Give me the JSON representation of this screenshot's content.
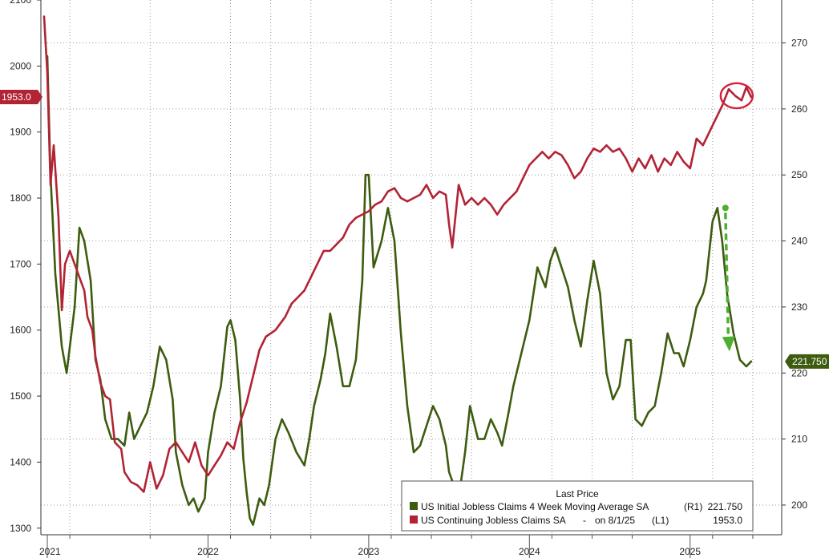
{
  "chart_data": {
    "type": "line",
    "grid": true,
    "legend_placement": "bottom-right",
    "legend_title": "Last Price",
    "left_axis": {
      "range": [
        1290,
        2100
      ],
      "ticks": [
        {
          "value": 1300,
          "label": "1300"
        },
        {
          "value": 1400,
          "label": "1400"
        },
        {
          "value": 1500,
          "label": "1500"
        },
        {
          "value": 1600,
          "label": "1600"
        },
        {
          "value": 1700,
          "label": "1700"
        },
        {
          "value": 1800,
          "label": "1800"
        },
        {
          "value": 1900,
          "label": "1900"
        },
        {
          "value": 2000,
          "label": "2000"
        },
        {
          "value": 2100,
          "label": "2100"
        }
      ]
    },
    "right_axis": {
      "range": [
        195.5,
        276.5
      ],
      "ticks": [
        {
          "value": 200,
          "label": "200"
        },
        {
          "value": 210,
          "label": "210"
        },
        {
          "value": 220,
          "label": "220"
        },
        {
          "value": 230,
          "label": "230"
        },
        {
          "value": 240,
          "label": "240"
        },
        {
          "value": 250,
          "label": "250"
        },
        {
          "value": 260,
          "label": "260"
        },
        {
          "value": 270,
          "label": "270"
        }
      ]
    },
    "x_axis": {
      "range": [
        2020.96,
        2025.57
      ],
      "year_labels": [
        {
          "value": 2021.05,
          "label": "2021"
        },
        {
          "value": 2022.0,
          "label": "2022"
        },
        {
          "value": 2023.0,
          "label": "2023"
        },
        {
          "value": 2024.0,
          "label": "2024"
        },
        {
          "value": 2025.0,
          "label": "2025"
        }
      ],
      "year_boundaries": [
        2021.0,
        2022.0,
        2023.0,
        2024.0,
        2025.0
      ],
      "gridlines": [
        2021.14,
        2021.64,
        2022.14,
        2022.39,
        2022.64,
        2023.14,
        2023.39,
        2023.64,
        2024.14,
        2024.39,
        2024.64,
        2025.14,
        2025.39
      ]
    },
    "series": [
      {
        "name": "US Initial Jobless Claims 4 Week Moving Average SA",
        "axis": "R1",
        "legend_axis_label": "(R1)",
        "last_value_label": "221.750",
        "last_value": 221.75,
        "color": "#3d5c0f",
        "points": [
          [
            2021.0,
            268
          ],
          [
            2021.02,
            250
          ],
          [
            2021.05,
            235
          ],
          [
            2021.09,
            224
          ],
          [
            2021.12,
            220
          ],
          [
            2021.17,
            230
          ],
          [
            2021.2,
            242
          ],
          [
            2021.23,
            240
          ],
          [
            2021.27,
            234
          ],
          [
            2021.3,
            222
          ],
          [
            2021.33,
            219
          ],
          [
            2021.36,
            213
          ],
          [
            2021.4,
            210
          ],
          [
            2021.44,
            210
          ],
          [
            2021.48,
            209
          ],
          [
            2021.51,
            214
          ],
          [
            2021.54,
            210
          ],
          [
            2021.58,
            212
          ],
          [
            2021.62,
            214
          ],
          [
            2021.66,
            218
          ],
          [
            2021.7,
            224
          ],
          [
            2021.74,
            222
          ],
          [
            2021.78,
            216
          ],
          [
            2021.8,
            208
          ],
          [
            2021.84,
            203
          ],
          [
            2021.88,
            200
          ],
          [
            2021.91,
            201
          ],
          [
            2021.94,
            199
          ],
          [
            2021.98,
            201
          ],
          [
            2022.0,
            208
          ],
          [
            2022.04,
            214
          ],
          [
            2022.08,
            218
          ],
          [
            2022.12,
            227
          ],
          [
            2022.14,
            228
          ],
          [
            2022.17,
            225
          ],
          [
            2022.2,
            216
          ],
          [
            2022.22,
            207
          ],
          [
            2022.24,
            202
          ],
          [
            2022.26,
            198
          ],
          [
            2022.28,
            197
          ],
          [
            2022.3,
            199
          ],
          [
            2022.32,
            201
          ],
          [
            2022.35,
            200
          ],
          [
            2022.38,
            203
          ],
          [
            2022.42,
            210
          ],
          [
            2022.46,
            213
          ],
          [
            2022.5,
            211
          ],
          [
            2022.55,
            208
          ],
          [
            2022.6,
            206
          ],
          [
            2022.63,
            210
          ],
          [
            2022.66,
            215
          ],
          [
            2022.7,
            219
          ],
          [
            2022.73,
            223
          ],
          [
            2022.76,
            229
          ],
          [
            2022.8,
            224
          ],
          [
            2022.84,
            218
          ],
          [
            2022.88,
            218
          ],
          [
            2022.92,
            222
          ],
          [
            2022.96,
            234
          ],
          [
            2022.98,
            250
          ],
          [
            2023.0,
            250
          ],
          [
            2023.03,
            236
          ],
          [
            2023.08,
            240
          ],
          [
            2023.12,
            245
          ],
          [
            2023.16,
            240
          ],
          [
            2023.2,
            226
          ],
          [
            2023.24,
            215
          ],
          [
            2023.28,
            208
          ],
          [
            2023.32,
            209
          ],
          [
            2023.36,
            212
          ],
          [
            2023.4,
            215
          ],
          [
            2023.44,
            213
          ],
          [
            2023.48,
            209
          ],
          [
            2023.5,
            205
          ],
          [
            2023.53,
            203
          ],
          [
            2023.56,
            201
          ],
          [
            2023.6,
            208
          ],
          [
            2023.63,
            215
          ],
          [
            2023.66,
            212
          ],
          [
            2023.68,
            210
          ],
          [
            2023.72,
            210
          ],
          [
            2023.76,
            213
          ],
          [
            2023.8,
            211
          ],
          [
            2023.83,
            209
          ],
          [
            2023.87,
            214
          ],
          [
            2023.9,
            218
          ],
          [
            2023.94,
            222
          ],
          [
            2024.0,
            228
          ],
          [
            2024.05,
            236
          ],
          [
            2024.1,
            233
          ],
          [
            2024.13,
            237
          ],
          [
            2024.16,
            239
          ],
          [
            2024.2,
            236
          ],
          [
            2024.24,
            233
          ],
          [
            2024.28,
            228
          ],
          [
            2024.32,
            224
          ],
          [
            2024.36,
            231
          ],
          [
            2024.4,
            237
          ],
          [
            2024.44,
            232
          ],
          [
            2024.48,
            220
          ],
          [
            2024.52,
            216
          ],
          [
            2024.56,
            218
          ],
          [
            2024.6,
            225
          ],
          [
            2024.63,
            225
          ],
          [
            2024.66,
            213
          ],
          [
            2024.7,
            212
          ],
          [
            2024.74,
            214
          ],
          [
            2024.78,
            215
          ],
          [
            2024.82,
            220
          ],
          [
            2024.86,
            226
          ],
          [
            2024.9,
            223
          ],
          [
            2024.93,
            223
          ],
          [
            2024.96,
            221
          ],
          [
            2025.0,
            225
          ],
          [
            2025.04,
            230
          ],
          [
            2025.08,
            232
          ],
          [
            2025.1,
            234
          ],
          [
            2025.14,
            243
          ],
          [
            2025.17,
            245
          ],
          [
            2025.2,
            240
          ],
          [
            2025.23,
            232
          ],
          [
            2025.27,
            226
          ],
          [
            2025.31,
            222
          ],
          [
            2025.35,
            221
          ],
          [
            2025.38,
            221.75
          ]
        ]
      },
      {
        "name": "US Continuing Jobless Claims SA",
        "axis": "L1",
        "legend_axis_label": "(L1)",
        "legend_date": "on 8/1/25",
        "last_value_label": "1953.0",
        "last_value": 1953.0,
        "color": "#b22335",
        "points": [
          [
            2020.98,
            2075
          ],
          [
            2021.0,
            1990
          ],
          [
            2021.02,
            1820
          ],
          [
            2021.04,
            1880
          ],
          [
            2021.07,
            1770
          ],
          [
            2021.09,
            1630
          ],
          [
            2021.11,
            1700
          ],
          [
            2021.14,
            1720
          ],
          [
            2021.17,
            1700
          ],
          [
            2021.2,
            1680
          ],
          [
            2021.23,
            1660
          ],
          [
            2021.25,
            1620
          ],
          [
            2021.28,
            1600
          ],
          [
            2021.3,
            1560
          ],
          [
            2021.33,
            1520
          ],
          [
            2021.36,
            1500
          ],
          [
            2021.39,
            1495
          ],
          [
            2021.42,
            1430
          ],
          [
            2021.46,
            1420
          ],
          [
            2021.48,
            1385
          ],
          [
            2021.52,
            1370
          ],
          [
            2021.56,
            1365
          ],
          [
            2021.6,
            1355
          ],
          [
            2021.64,
            1400
          ],
          [
            2021.68,
            1360
          ],
          [
            2021.72,
            1380
          ],
          [
            2021.76,
            1420
          ],
          [
            2021.8,
            1430
          ],
          [
            2021.84,
            1415
          ],
          [
            2021.88,
            1400
          ],
          [
            2021.92,
            1430
          ],
          [
            2021.96,
            1395
          ],
          [
            2022.0,
            1380
          ],
          [
            2022.04,
            1395
          ],
          [
            2022.08,
            1410
          ],
          [
            2022.12,
            1430
          ],
          [
            2022.16,
            1420
          ],
          [
            2022.2,
            1460
          ],
          [
            2022.24,
            1490
          ],
          [
            2022.28,
            1530
          ],
          [
            2022.32,
            1570
          ],
          [
            2022.36,
            1590
          ],
          [
            2022.42,
            1600
          ],
          [
            2022.48,
            1620
          ],
          [
            2022.52,
            1640
          ],
          [
            2022.56,
            1650
          ],
          [
            2022.6,
            1660
          ],
          [
            2022.64,
            1680
          ],
          [
            2022.68,
            1700
          ],
          [
            2022.72,
            1720
          ],
          [
            2022.76,
            1720
          ],
          [
            2022.8,
            1730
          ],
          [
            2022.84,
            1740
          ],
          [
            2022.88,
            1760
          ],
          [
            2022.92,
            1770
          ],
          [
            2022.96,
            1775
          ],
          [
            2023.0,
            1780
          ],
          [
            2023.04,
            1790
          ],
          [
            2023.08,
            1795
          ],
          [
            2023.12,
            1810
          ],
          [
            2023.16,
            1815
          ],
          [
            2023.2,
            1800
          ],
          [
            2023.24,
            1795
          ],
          [
            2023.28,
            1800
          ],
          [
            2023.32,
            1805
          ],
          [
            2023.36,
            1820
          ],
          [
            2023.4,
            1800
          ],
          [
            2023.44,
            1810
          ],
          [
            2023.48,
            1805
          ],
          [
            2023.5,
            1760
          ],
          [
            2023.52,
            1725
          ],
          [
            2023.56,
            1820
          ],
          [
            2023.6,
            1790
          ],
          [
            2023.64,
            1800
          ],
          [
            2023.68,
            1790
          ],
          [
            2023.72,
            1800
          ],
          [
            2023.76,
            1790
          ],
          [
            2023.8,
            1775
          ],
          [
            2023.84,
            1790
          ],
          [
            2023.88,
            1800
          ],
          [
            2023.92,
            1810
          ],
          [
            2023.96,
            1830
          ],
          [
            2024.0,
            1850
          ],
          [
            2024.04,
            1860
          ],
          [
            2024.08,
            1870
          ],
          [
            2024.12,
            1860
          ],
          [
            2024.16,
            1870
          ],
          [
            2024.2,
            1865
          ],
          [
            2024.24,
            1850
          ],
          [
            2024.28,
            1830
          ],
          [
            2024.32,
            1840
          ],
          [
            2024.36,
            1860
          ],
          [
            2024.4,
            1875
          ],
          [
            2024.44,
            1870
          ],
          [
            2024.48,
            1880
          ],
          [
            2024.52,
            1870
          ],
          [
            2024.56,
            1875
          ],
          [
            2024.6,
            1860
          ],
          [
            2024.64,
            1840
          ],
          [
            2024.68,
            1860
          ],
          [
            2024.72,
            1845
          ],
          [
            2024.76,
            1865
          ],
          [
            2024.8,
            1840
          ],
          [
            2024.84,
            1860
          ],
          [
            2024.88,
            1850
          ],
          [
            2024.92,
            1870
          ],
          [
            2024.96,
            1855
          ],
          [
            2025.0,
            1845
          ],
          [
            2025.04,
            1890
          ],
          [
            2025.08,
            1880
          ],
          [
            2025.12,
            1900
          ],
          [
            2025.16,
            1920
          ],
          [
            2025.2,
            1940
          ],
          [
            2025.24,
            1965
          ],
          [
            2025.28,
            1955
          ],
          [
            2025.32,
            1948
          ],
          [
            2025.35,
            1968
          ],
          [
            2025.38,
            1953
          ]
        ]
      }
    ],
    "annotations": [
      {
        "type": "circle",
        "description": "highlight",
        "color": "#d4203a",
        "center": [
          2025.29,
          1955
        ],
        "radius_x_years": 0.1
      }
    ]
  }
}
